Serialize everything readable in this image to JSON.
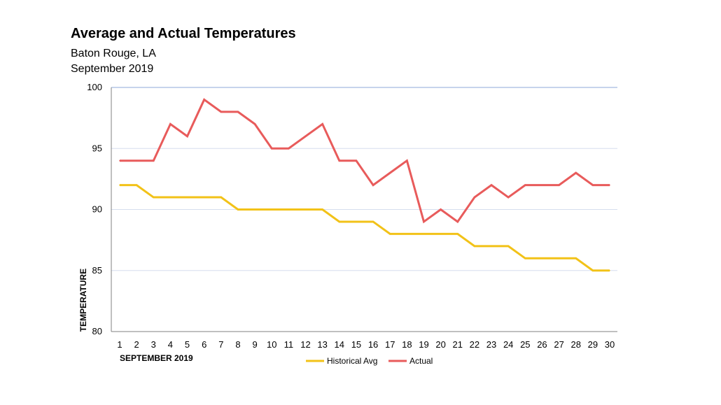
{
  "chart_data": {
    "type": "line",
    "title": "Average and Actual Temperatures",
    "subtitle_lines": [
      "Baton Rouge, LA",
      "September 2019"
    ],
    "xlabel": "SEPTEMBER  2019",
    "ylabel": "TEMPERATURE",
    "x": [
      "1",
      "2",
      "3",
      "4",
      "5",
      "6",
      "7",
      "8",
      "9",
      "10",
      "11",
      "12",
      "13",
      "14",
      "15",
      "16",
      "17",
      "18",
      "19",
      "20",
      "21",
      "22",
      "23",
      "24",
      "25",
      "26",
      "27",
      "28",
      "29",
      "30"
    ],
    "ylim": [
      80,
      100
    ],
    "yticks": [
      "80",
      "85",
      "90",
      "95",
      "100"
    ],
    "grid": true,
    "legend_position": "bottom",
    "series": [
      {
        "name": "Historical Avg",
        "color": "#F2C218",
        "values": [
          92,
          92,
          91,
          91,
          91,
          91,
          91,
          90,
          90,
          90,
          90,
          90,
          90,
          89,
          89,
          89,
          88,
          88,
          88,
          88,
          88,
          87,
          87,
          87,
          86,
          86,
          86,
          86,
          85,
          85
        ]
      },
      {
        "name": "Actual",
        "color": "#E85B5B",
        "values": [
          94,
          94,
          94,
          97,
          96,
          99,
          98,
          98,
          97,
          95,
          95,
          96,
          97,
          94,
          94,
          92,
          93,
          94,
          89,
          90,
          89,
          91,
          92,
          91,
          92,
          92,
          92,
          93,
          92,
          92
        ]
      }
    ]
  }
}
